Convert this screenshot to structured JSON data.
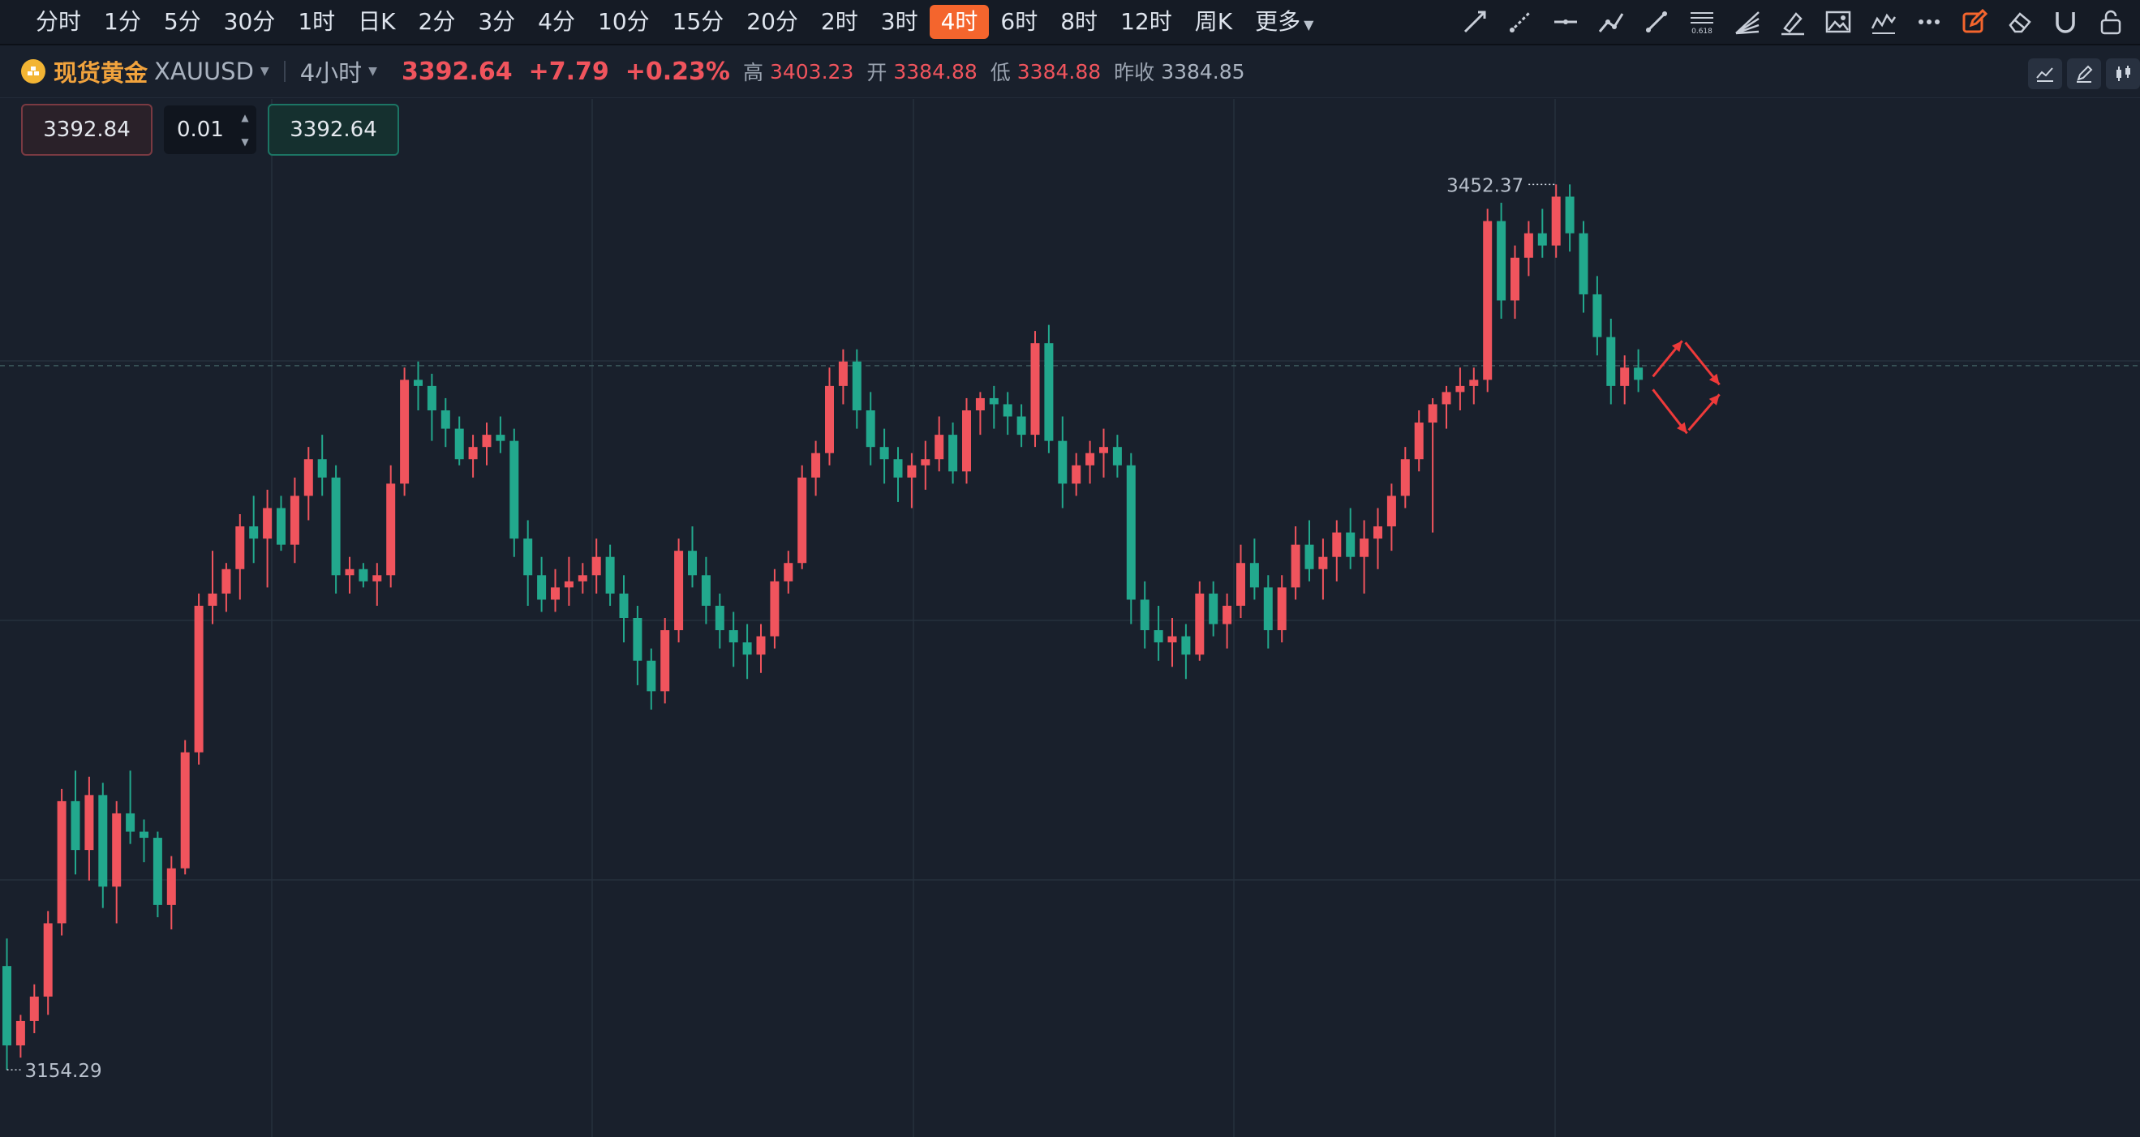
{
  "periods": [
    {
      "label": "分时",
      "active": false
    },
    {
      "label": "1分",
      "active": false
    },
    {
      "label": "5分",
      "active": false
    },
    {
      "label": "30分",
      "active": false
    },
    {
      "label": "1时",
      "active": false
    },
    {
      "label": "日K",
      "active": false
    },
    {
      "label": "2分",
      "active": false
    },
    {
      "label": "3分",
      "active": false
    },
    {
      "label": "4分",
      "active": false
    },
    {
      "label": "10分",
      "active": false
    },
    {
      "label": "15分",
      "active": false
    },
    {
      "label": "20分",
      "active": false
    },
    {
      "label": "2时",
      "active": false
    },
    {
      "label": "3时",
      "active": false
    },
    {
      "label": "4时",
      "active": true
    },
    {
      "label": "6时",
      "active": false
    },
    {
      "label": "8时",
      "active": false
    },
    {
      "label": "12时",
      "active": false
    },
    {
      "label": "周K",
      "active": false
    },
    {
      "label": "更多",
      "active": false
    }
  ],
  "tools": [
    "trend-line-icon",
    "ray-line-icon",
    "horizontal-line-icon",
    "polyline-icon",
    "segment-icon",
    "fibonacci-icon",
    "fan-icon",
    "brush-icon",
    "image-icon",
    "wave-icon",
    "more-dots-icon",
    "edit-drawing-icon",
    "eraser-icon",
    "magnet-icon",
    "lock-icon"
  ],
  "fib_label": "0.618",
  "symbol": {
    "name_cn": "现货黄金",
    "code": "XAUUSD",
    "timeframe": "4小时",
    "price": "3392.64",
    "change": "+7.79",
    "change_pct": "+0.23%"
  },
  "ohlc": {
    "high_k": "高",
    "high": "3403.23",
    "open_k": "开",
    "open": "3384.88",
    "low_k": "低",
    "low": "3384.88",
    "prev_k": "昨收",
    "prev": "3384.85"
  },
  "order": {
    "sell": "3392.84",
    "qty": "0.01",
    "buy": "3392.64"
  },
  "colors": {
    "up": "#f0545d",
    "down": "#22a88d",
    "bg": "#19202c",
    "grid": "#26303d",
    "arrow": "#ee3a3a"
  },
  "chart_data": {
    "type": "candlestick",
    "ylim": [
      3140,
      3480
    ],
    "max_label": "3452.37",
    "min_label": "3154.29",
    "current_price": 3392.64,
    "candles": [
      [
        3196,
        3205,
        3162,
        3170
      ],
      [
        3170,
        3180,
        3166,
        3178
      ],
      [
        3178,
        3190,
        3174,
        3186
      ],
      [
        3186,
        3214,
        3180,
        3210
      ],
      [
        3210,
        3254,
        3206,
        3250
      ],
      [
        3250,
        3260,
        3226,
        3234
      ],
      [
        3234,
        3258,
        3224,
        3252
      ],
      [
        3252,
        3256,
        3215,
        3222
      ],
      [
        3222,
        3250,
        3210,
        3246
      ],
      [
        3246,
        3260,
        3236,
        3240
      ],
      [
        3240,
        3244,
        3230,
        3238
      ],
      [
        3238,
        3240,
        3212,
        3216
      ],
      [
        3216,
        3232,
        3208,
        3228
      ],
      [
        3228,
        3270,
        3226,
        3266
      ],
      [
        3266,
        3318,
        3262,
        3314
      ],
      [
        3314,
        3332,
        3308,
        3318
      ],
      [
        3318,
        3328,
        3312,
        3326
      ],
      [
        3326,
        3344,
        3316,
        3340
      ],
      [
        3340,
        3350,
        3328,
        3336
      ],
      [
        3336,
        3352,
        3320,
        3346
      ],
      [
        3346,
        3350,
        3332,
        3334
      ],
      [
        3334,
        3356,
        3328,
        3350
      ],
      [
        3350,
        3366,
        3342,
        3362
      ],
      [
        3362,
        3370,
        3350,
        3356
      ],
      [
        3356,
        3360,
        3318,
        3324
      ],
      [
        3324,
        3330,
        3318,
        3326
      ],
      [
        3326,
        3328,
        3320,
        3322
      ],
      [
        3322,
        3328,
        3314,
        3324
      ],
      [
        3324,
        3360,
        3320,
        3354
      ],
      [
        3354,
        3392,
        3350,
        3388
      ],
      [
        3388,
        3394,
        3378,
        3386
      ],
      [
        3386,
        3390,
        3368,
        3378
      ],
      [
        3378,
        3382,
        3366,
        3372
      ],
      [
        3372,
        3376,
        3360,
        3362
      ],
      [
        3362,
        3370,
        3356,
        3366
      ],
      [
        3366,
        3374,
        3360,
        3370
      ],
      [
        3370,
        3376,
        3364,
        3368
      ],
      [
        3368,
        3372,
        3330,
        3336
      ],
      [
        3336,
        3342,
        3314,
        3324
      ],
      [
        3324,
        3330,
        3312,
        3316
      ],
      [
        3316,
        3326,
        3312,
        3320
      ],
      [
        3320,
        3330,
        3314,
        3322
      ],
      [
        3322,
        3328,
        3318,
        3324
      ],
      [
        3324,
        3336,
        3318,
        3330
      ],
      [
        3330,
        3334,
        3314,
        3318
      ],
      [
        3318,
        3324,
        3302,
        3310
      ],
      [
        3310,
        3314,
        3288,
        3296
      ],
      [
        3296,
        3300,
        3280,
        3286
      ],
      [
        3286,
        3310,
        3282,
        3306
      ],
      [
        3306,
        3336,
        3302,
        3332
      ],
      [
        3332,
        3340,
        3320,
        3324
      ],
      [
        3324,
        3330,
        3308,
        3314
      ],
      [
        3314,
        3318,
        3300,
        3306
      ],
      [
        3306,
        3312,
        3294,
        3302
      ],
      [
        3302,
        3308,
        3290,
        3298
      ],
      [
        3298,
        3308,
        3292,
        3304
      ],
      [
        3304,
        3326,
        3300,
        3322
      ],
      [
        3322,
        3332,
        3318,
        3328
      ],
      [
        3328,
        3360,
        3326,
        3356
      ],
      [
        3356,
        3368,
        3350,
        3364
      ],
      [
        3364,
        3392,
        3360,
        3386
      ],
      [
        3386,
        3398,
        3380,
        3394
      ],
      [
        3394,
        3398,
        3372,
        3378
      ],
      [
        3378,
        3384,
        3360,
        3366
      ],
      [
        3366,
        3372,
        3354,
        3362
      ],
      [
        3362,
        3366,
        3348,
        3356
      ],
      [
        3356,
        3364,
        3346,
        3360
      ],
      [
        3360,
        3368,
        3352,
        3362
      ],
      [
        3362,
        3376,
        3358,
        3370
      ],
      [
        3370,
        3374,
        3354,
        3358
      ],
      [
        3358,
        3382,
        3354,
        3378
      ],
      [
        3378,
        3384,
        3370,
        3382
      ],
      [
        3382,
        3386,
        3372,
        3380
      ],
      [
        3380,
        3384,
        3370,
        3376
      ],
      [
        3376,
        3380,
        3366,
        3370
      ],
      [
        3370,
        3404,
        3366,
        3400
      ],
      [
        3400,
        3406,
        3364,
        3368
      ],
      [
        3368,
        3376,
        3346,
        3354
      ],
      [
        3354,
        3364,
        3350,
        3360
      ],
      [
        3360,
        3368,
        3354,
        3364
      ],
      [
        3364,
        3372,
        3356,
        3366
      ],
      [
        3366,
        3370,
        3356,
        3360
      ],
      [
        3360,
        3364,
        3308,
        3316
      ],
      [
        3316,
        3322,
        3300,
        3306
      ],
      [
        3306,
        3314,
        3296,
        3302
      ],
      [
        3302,
        3310,
        3294,
        3304
      ],
      [
        3304,
        3308,
        3290,
        3298
      ],
      [
        3298,
        3322,
        3296,
        3318
      ],
      [
        3318,
        3322,
        3304,
        3308
      ],
      [
        3308,
        3318,
        3300,
        3314
      ],
      [
        3314,
        3334,
        3310,
        3328
      ],
      [
        3328,
        3336,
        3316,
        3320
      ],
      [
        3320,
        3324,
        3300,
        3306
      ],
      [
        3306,
        3324,
        3302,
        3320
      ],
      [
        3320,
        3340,
        3316,
        3334
      ],
      [
        3334,
        3342,
        3322,
        3326
      ],
      [
        3326,
        3336,
        3316,
        3330
      ],
      [
        3330,
        3342,
        3322,
        3338
      ],
      [
        3338,
        3346,
        3326,
        3330
      ],
      [
        3330,
        3342,
        3318,
        3336
      ],
      [
        3336,
        3346,
        3326,
        3340
      ],
      [
        3340,
        3354,
        3332,
        3350
      ],
      [
        3350,
        3366,
        3346,
        3362
      ],
      [
        3362,
        3378,
        3358,
        3374
      ],
      [
        3374,
        3382,
        3338,
        3380
      ],
      [
        3380,
        3386,
        3372,
        3384
      ],
      [
        3384,
        3392,
        3378,
        3386
      ],
      [
        3386,
        3392,
        3380,
        3388
      ],
      [
        3388,
        3444,
        3384,
        3440
      ],
      [
        3440,
        3446,
        3408,
        3414
      ],
      [
        3414,
        3432,
        3408,
        3428
      ],
      [
        3428,
        3440,
        3422,
        3436
      ],
      [
        3436,
        3444,
        3428,
        3432
      ],
      [
        3432,
        3452,
        3428,
        3448
      ],
      [
        3448,
        3452,
        3430,
        3436
      ],
      [
        3436,
        3440,
        3410,
        3416
      ],
      [
        3416,
        3422,
        3396,
        3402
      ],
      [
        3402,
        3408,
        3380,
        3386
      ],
      [
        3386,
        3396,
        3380,
        3392
      ],
      [
        3392,
        3398,
        3384,
        3388
      ]
    ]
  }
}
